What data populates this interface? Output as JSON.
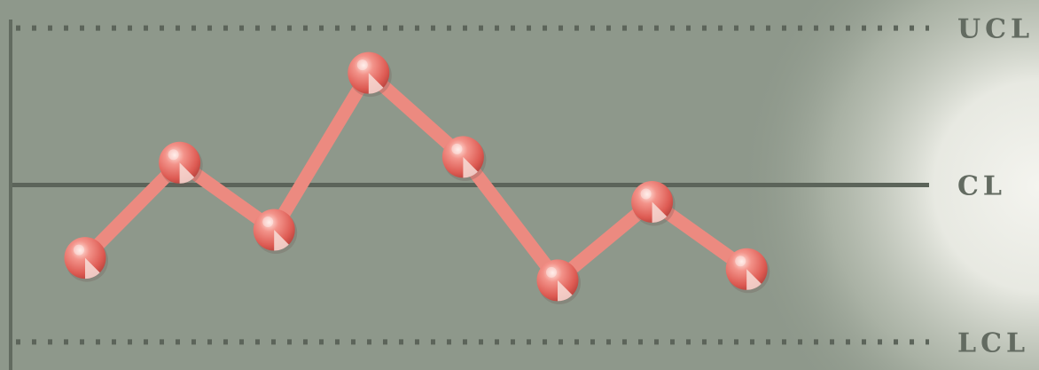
{
  "chart_data": {
    "type": "line",
    "title": "",
    "xlabel": "",
    "ylabel": "",
    "x": [
      1,
      2,
      3,
      4,
      5,
      6,
      7,
      8
    ],
    "series": [
      {
        "values": [
          -0.65,
          0.2,
          -0.4,
          1.0,
          0.25,
          -0.85,
          -0.15,
          -0.75
        ]
      }
    ],
    "reference_lines": [
      {
        "label": "UCL",
        "value": 1.4,
        "style": "dotted"
      },
      {
        "label": "CL",
        "value": 0.0,
        "style": "solid"
      },
      {
        "label": "LCL",
        "value": -1.4,
        "style": "dotted"
      }
    ],
    "ylim": [
      -1.65,
      1.65
    ],
    "grid": false,
    "colors": {
      "background": "#8e988b",
      "highlight": "#f4f4ef",
      "line": "#ec8a80",
      "marker": "#e46a60",
      "reference_line": "#5c645a",
      "label": "#636b61"
    }
  }
}
